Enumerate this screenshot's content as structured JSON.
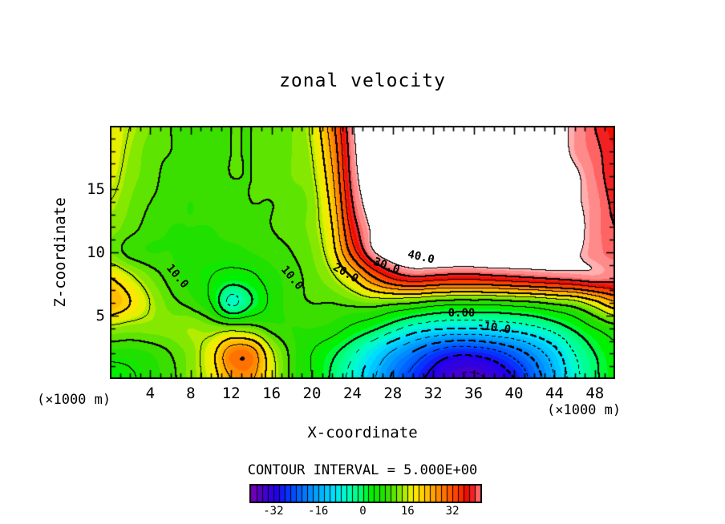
{
  "figure": {
    "title": "zonal velocity",
    "xlabel": "X-coordinate",
    "ylabel": "Z-coordinate",
    "x_unit_left": "(×1000 m)",
    "x_unit_right": "(×1000 m)",
    "contour_interval_text": "CONTOUR INTERVAL = 5.000E+00"
  },
  "chart_data": {
    "type": "filled_contour",
    "title": "zonal velocity",
    "xlabel": "X-coordinate",
    "ylabel": "Z-coordinate",
    "axis_unit": "(×1000 m)",
    "x_range": [
      0,
      50
    ],
    "z_range": [
      0,
      20
    ],
    "x_major_ticks": [
      4,
      8,
      12,
      16,
      20,
      24,
      28,
      32,
      36,
      40,
      44,
      48
    ],
    "x_minor_step": 1,
    "y_major_ticks": [
      5,
      10,
      15
    ],
    "y_minor_step": 1,
    "contour_interval": 5.0,
    "thick_line_every": 10,
    "negative_contours": "dashed",
    "white_above": 45,
    "fill_step": 2,
    "palette_stops": [
      [
        -40,
        "#7800B4"
      ],
      [
        -36,
        "#4B00C8"
      ],
      [
        -31,
        "#2200EE"
      ],
      [
        -26,
        "#0041FF"
      ],
      [
        -21,
        "#0078FF"
      ],
      [
        -16,
        "#00AAFF"
      ],
      [
        -11,
        "#00DCFF"
      ],
      [
        -6,
        "#00FFC8"
      ],
      [
        -1,
        "#00FF6E"
      ],
      [
        3,
        "#00F000"
      ],
      [
        8,
        "#28DC00"
      ],
      [
        12,
        "#6EE600"
      ],
      [
        15,
        "#B4EC00"
      ],
      [
        18,
        "#FFF000"
      ],
      [
        22,
        "#FFC800"
      ],
      [
        26,
        "#FF9600"
      ],
      [
        30,
        "#FF6400"
      ],
      [
        34,
        "#FF3700"
      ],
      [
        38,
        "#EB0000"
      ],
      [
        41,
        "#FF6464"
      ],
      [
        45,
        "#FFAFAF"
      ]
    ],
    "colorbar": {
      "min": -40,
      "max": 42,
      "cell_units": 2,
      "tick_values": [
        -32,
        -16,
        0,
        16,
        32
      ],
      "tick_labels": [
        "-32",
        "-16",
        "0",
        "16",
        "32"
      ]
    },
    "grid": {
      "x0": 0,
      "dx": 2,
      "z0": 0,
      "dz": 2,
      "values": [
        [
          2,
          4,
          7,
          9,
          13,
          17,
          25,
          26,
          17,
          9,
          5,
          -1,
          -7,
          -14,
          -21,
          -27,
          -32,
          -35,
          -36,
          -34,
          -30,
          -23,
          -15,
          -7,
          -1,
          3
        ],
        [
          7,
          7,
          8,
          10,
          13,
          18,
          28,
          28,
          16,
          9,
          5,
          1,
          -4,
          -10,
          -16,
          -21,
          -26,
          -29,
          -29,
          -27,
          -23,
          -18,
          -12,
          -5,
          0,
          4
        ],
        [
          14,
          13,
          13,
          13,
          14,
          13,
          13,
          12,
          9,
          8,
          8,
          7,
          4,
          1,
          -3,
          -7,
          -9,
          -10,
          -10,
          -9,
          -8,
          -6,
          -3,
          1,
          5,
          8
        ],
        [
          24,
          20,
          15,
          11,
          9,
          5,
          -6,
          0,
          6,
          9,
          10,
          10,
          11,
          12,
          11,
          10,
          8,
          7,
          7,
          7,
          8,
          9,
          11,
          13,
          18,
          24
        ],
        [
          20,
          16,
          12,
          9,
          7,
          5,
          3,
          4,
          7,
          9,
          11,
          14,
          20,
          29,
          36,
          39,
          38,
          37,
          37,
          38,
          39,
          40,
          41,
          42,
          43,
          42
        ],
        [
          12,
          9,
          8,
          8,
          7,
          7,
          7,
          8,
          9,
          10,
          12,
          18,
          32,
          44,
          49,
          51,
          52,
          52,
          52,
          52,
          51,
          50,
          49,
          46,
          43,
          41
        ],
        [
          13,
          11,
          9,
          8,
          8,
          8,
          9,
          9,
          10,
          11,
          13,
          20,
          37,
          46,
          50,
          52,
          53,
          53,
          53,
          52,
          52,
          51,
          49,
          47,
          43,
          40
        ],
        [
          15,
          12,
          10,
          9,
          8,
          9,
          9,
          10,
          10,
          11,
          13,
          22,
          40,
          48,
          51,
          53,
          54,
          54,
          54,
          53,
          52,
          51,
          49,
          46,
          43,
          39
        ],
        [
          17,
          13,
          11,
          9,
          9,
          9,
          10,
          10,
          11,
          12,
          14,
          24,
          42,
          49,
          52,
          54,
          54,
          55,
          54,
          54,
          53,
          51,
          48,
          46,
          42,
          38
        ],
        [
          18,
          14,
          11,
          10,
          9,
          9,
          10,
          10,
          11,
          12,
          15,
          26,
          43,
          50,
          53,
          54,
          55,
          55,
          55,
          54,
          53,
          50,
          48,
          44,
          41,
          38
        ],
        [
          18,
          15,
          12,
          10,
          9,
          9,
          10,
          10,
          11,
          12,
          16,
          28,
          44,
          50,
          53,
          54,
          55,
          55,
          55,
          54,
          52,
          50,
          47,
          44,
          40,
          37
        ]
      ]
    },
    "contour_labels": [
      {
        "text": "10.0",
        "x": 6.7,
        "z": 8.1,
        "rot": 50
      },
      {
        "text": "10.0",
        "x": 18.0,
        "z": 8.0,
        "rot": 50
      },
      {
        "text": "20.0",
        "x": 23.3,
        "z": 8.35,
        "rot": 30
      },
      {
        "text": "30.0",
        "x": 27.4,
        "z": 8.9,
        "rot": 20
      },
      {
        "text": "40.0",
        "x": 30.8,
        "z": 9.6,
        "rot": 13
      },
      {
        "text": "0.00",
        "x": 34.8,
        "z": 5.2,
        "rot": 0
      },
      {
        "text": "-10.0",
        "x": 38.0,
        "z": 4.05,
        "rot": 9
      }
    ]
  }
}
